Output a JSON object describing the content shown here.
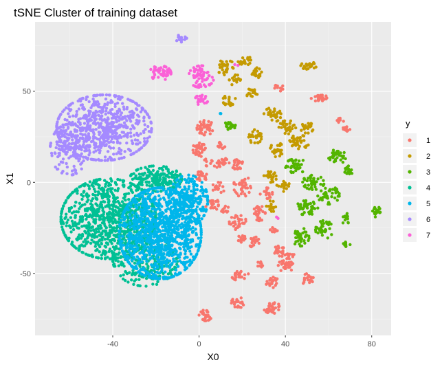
{
  "chart_data": {
    "type": "scatter",
    "title": "tSNE Cluster of training dataset",
    "xlabel": "X0",
    "ylabel": "X1",
    "xlim": [
      -76,
      89
    ],
    "ylim": [
      -84,
      88
    ],
    "x_ticks": [
      -40,
      0,
      40,
      80
    ],
    "y_ticks": [
      -50,
      0,
      50
    ],
    "grid": true,
    "legend": {
      "title": "y",
      "position": "right"
    },
    "series": [
      {
        "name": "1",
        "color": "#F8766D",
        "clusters": [
          {
            "cx": 3,
            "cy": 30,
            "rx": 4,
            "ry": 4,
            "n": 40
          },
          {
            "cx": 0,
            "cy": 18,
            "rx": 3,
            "ry": 4,
            "n": 30
          },
          {
            "cx": 10,
            "cy": 20,
            "rx": 2,
            "ry": 2,
            "n": 12
          },
          {
            "cx": 1,
            "cy": 3,
            "rx": 3,
            "ry": 3,
            "n": 22
          },
          {
            "cx": 8,
            "cy": 11,
            "rx": 6,
            "ry": 3,
            "n": 30
          },
          {
            "cx": 18,
            "cy": 10,
            "rx": 3,
            "ry": 4,
            "n": 25
          },
          {
            "cx": 20,
            "cy": -2,
            "rx": 4,
            "ry": 6,
            "n": 35
          },
          {
            "cx": 9,
            "cy": -3,
            "rx": 3,
            "ry": 3,
            "n": 15
          },
          {
            "cx": 6,
            "cy": -12,
            "rx": 3,
            "ry": 4,
            "n": 22
          },
          {
            "cx": 12,
            "cy": -15,
            "rx": 2,
            "ry": 2,
            "n": 12
          },
          {
            "cx": 18,
            "cy": -22,
            "rx": 4,
            "ry": 4,
            "n": 30
          },
          {
            "cx": 28,
            "cy": -17,
            "rx": 3,
            "ry": 4,
            "n": 25
          },
          {
            "cx": 31,
            "cy": -6,
            "rx": 3,
            "ry": 3,
            "n": 18
          },
          {
            "cx": 26,
            "cy": -33,
            "rx": 3,
            "ry": 3,
            "n": 20
          },
          {
            "cx": 20,
            "cy": -31,
            "rx": 2,
            "ry": 3,
            "n": 18
          },
          {
            "cx": 35,
            "cy": -26,
            "rx": 2,
            "ry": 2,
            "n": 12
          },
          {
            "cx": 37,
            "cy": -38,
            "rx": 3,
            "ry": 3,
            "n": 22
          },
          {
            "cx": 40,
            "cy": -46,
            "rx": 4,
            "ry": 3,
            "n": 30
          },
          {
            "cx": 34,
            "cy": -55,
            "rx": 3,
            "ry": 3,
            "n": 20
          },
          {
            "cx": 19,
            "cy": -51,
            "rx": 4,
            "ry": 3,
            "n": 25
          },
          {
            "cx": 18,
            "cy": -66,
            "rx": 3,
            "ry": 3,
            "n": 20
          },
          {
            "cx": 34,
            "cy": -69,
            "rx": 4,
            "ry": 3,
            "n": 30
          },
          {
            "cx": 3,
            "cy": -73,
            "rx": 3,
            "ry": 3,
            "n": 25
          },
          {
            "cx": 50,
            "cy": -53,
            "rx": 3,
            "ry": 3,
            "n": 20
          },
          {
            "cx": 41,
            "cy": -40,
            "rx": 3,
            "ry": 2,
            "n": 12
          },
          {
            "cx": 56,
            "cy": 46,
            "rx": 4,
            "ry": 2,
            "n": 25
          },
          {
            "cx": 37,
            "cy": 52,
            "rx": 2,
            "ry": 2,
            "n": 10
          },
          {
            "cx": 65,
            "cy": 34,
            "rx": 2,
            "ry": 2,
            "n": 12
          },
          {
            "cx": 68,
            "cy": 29,
            "rx": 2,
            "ry": 2,
            "n": 14
          },
          {
            "cx": 29,
            "cy": -45,
            "rx": 2,
            "ry": 2,
            "n": 8
          }
        ]
      },
      {
        "name": "2",
        "color": "#C49A00",
        "clusters": [
          {
            "cx": 12,
            "cy": 64,
            "rx": 4,
            "ry": 5,
            "n": 30
          },
          {
            "cx": 17,
            "cy": 56,
            "rx": 3,
            "ry": 3,
            "n": 20
          },
          {
            "cx": 21,
            "cy": 67,
            "rx": 3,
            "ry": 3,
            "n": 18
          },
          {
            "cx": 14,
            "cy": 45,
            "rx": 3,
            "ry": 3,
            "n": 20
          },
          {
            "cx": 24,
            "cy": 49,
            "rx": 3,
            "ry": 3,
            "n": 18
          },
          {
            "cx": 26,
            "cy": 60,
            "rx": 3,
            "ry": 3,
            "n": 20
          },
          {
            "cx": 34,
            "cy": 37,
            "rx": 4,
            "ry": 4,
            "n": 30
          },
          {
            "cx": 26,
            "cy": 25,
            "rx": 3,
            "ry": 4,
            "n": 25
          },
          {
            "cx": 36,
            "cy": 18,
            "rx": 3,
            "ry": 4,
            "n": 28
          },
          {
            "cx": 41,
            "cy": 30,
            "rx": 4,
            "ry": 4,
            "n": 30
          },
          {
            "cx": 46,
            "cy": 22,
            "rx": 5,
            "ry": 4,
            "n": 35
          },
          {
            "cx": 50,
            "cy": 30,
            "rx": 3,
            "ry": 3,
            "n": 20
          },
          {
            "cx": 51,
            "cy": 64,
            "rx": 4,
            "ry": 2,
            "n": 20
          },
          {
            "cx": 33,
            "cy": 3,
            "rx": 3,
            "ry": 3,
            "n": 22
          },
          {
            "cx": 39,
            "cy": -2,
            "rx": 3,
            "ry": 3,
            "n": 18
          },
          {
            "cx": 34,
            "cy": -13,
            "rx": 3,
            "ry": 3,
            "n": 15
          }
        ]
      },
      {
        "name": "3",
        "color": "#53B400",
        "clusters": [
          {
            "cx": 14,
            "cy": 31,
            "rx": 3,
            "ry": 2,
            "n": 20
          },
          {
            "cx": 45,
            "cy": 9,
            "rx": 5,
            "ry": 4,
            "n": 40
          },
          {
            "cx": 53,
            "cy": 0,
            "rx": 5,
            "ry": 4,
            "n": 40
          },
          {
            "cx": 50,
            "cy": -14,
            "rx": 5,
            "ry": 4,
            "n": 40
          },
          {
            "cx": 60,
            "cy": -7,
            "rx": 5,
            "ry": 5,
            "n": 40
          },
          {
            "cx": 64,
            "cy": 14,
            "rx": 4,
            "ry": 4,
            "n": 30
          },
          {
            "cx": 47,
            "cy": -30,
            "rx": 4,
            "ry": 5,
            "n": 35
          },
          {
            "cx": 58,
            "cy": -26,
            "rx": 4,
            "ry": 5,
            "n": 35
          },
          {
            "cx": 68,
            "cy": -20,
            "rx": 2,
            "ry": 3,
            "n": 15
          },
          {
            "cx": 82,
            "cy": -16,
            "rx": 2,
            "ry": 3,
            "n": 20
          },
          {
            "cx": 69,
            "cy": 6,
            "rx": 2,
            "ry": 3,
            "n": 20
          },
          {
            "cx": 68,
            "cy": -34,
            "rx": 2,
            "ry": 2,
            "n": 10
          }
        ]
      },
      {
        "name": "4",
        "color": "#00C094",
        "clusters": [
          {
            "cx": -42,
            "cy": -20,
            "rx": 22,
            "ry": 22,
            "n": 900
          },
          {
            "cx": -25,
            "cy": -42,
            "rx": 15,
            "ry": 15,
            "n": 260
          },
          {
            "cx": -20,
            "cy": 2,
            "rx": 12,
            "ry": 7,
            "n": 200
          }
        ]
      },
      {
        "name": "5",
        "color": "#00B6EB",
        "clusters": [
          {
            "cx": -18,
            "cy": -28,
            "rx": 19,
            "ry": 25,
            "n": 1100
          },
          {
            "cx": -5,
            "cy": -10,
            "rx": 9,
            "ry": 14,
            "n": 250
          },
          {
            "cx": 10,
            "cy": 38,
            "rx": 0.5,
            "ry": 0.5,
            "n": 2
          }
        ]
      },
      {
        "name": "6",
        "color": "#A58AFF",
        "clusters": [
          {
            "cx": -44,
            "cy": 30,
            "rx": 22,
            "ry": 18,
            "n": 650
          },
          {
            "cx": -60,
            "cy": 18,
            "rx": 9,
            "ry": 14,
            "n": 150
          },
          {
            "cx": -8,
            "cy": 79,
            "rx": 3,
            "ry": 2,
            "n": 15
          }
        ]
      },
      {
        "name": "7",
        "color": "#FB61D7",
        "clusters": [
          {
            "cx": -18,
            "cy": 60,
            "rx": 5,
            "ry": 4,
            "n": 50
          },
          {
            "cx": 1,
            "cy": 58,
            "rx": 6,
            "ry": 6,
            "n": 65
          },
          {
            "cx": 1,
            "cy": 45,
            "rx": 3,
            "ry": 3,
            "n": 25
          },
          {
            "cx": 17,
            "cy": 64,
            "rx": 1,
            "ry": 1,
            "n": 2
          },
          {
            "cx": 36,
            "cy": -19,
            "rx": 1,
            "ry": 1,
            "n": 2
          }
        ]
      }
    ]
  }
}
